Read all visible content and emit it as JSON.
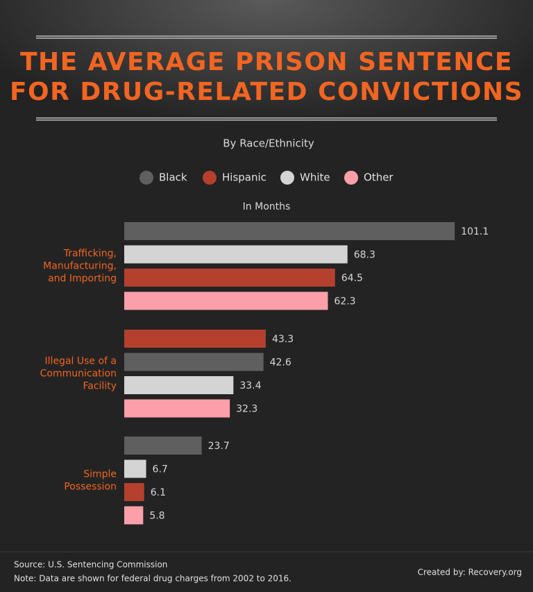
{
  "chart_data": {
    "type": "bar",
    "orientation": "horizontal",
    "title_lines": [
      "THE AVERAGE PRISON SENTENCE",
      "FOR DRUG-RELATED CONVICTIONS"
    ],
    "subtitle": "By Race/Ethnicity",
    "axis_label": "In Months",
    "series": [
      {
        "name": "Black",
        "color": "#5f5f5f"
      },
      {
        "name": "Hispanic",
        "color": "#b5402e"
      },
      {
        "name": "White",
        "color": "#d4d4d4"
      },
      {
        "name": "Other",
        "color": "#fd9fa8"
      }
    ],
    "groups": [
      {
        "label_lines": [
          "Trafficking,",
          "Manufacturing,",
          "and Importing"
        ],
        "bars": [
          {
            "color": "#5f5f5f",
            "value": 101.1
          },
          {
            "color": "#d4d4d4",
            "value": 68.3
          },
          {
            "color": "#b5402e",
            "value": 64.5
          },
          {
            "color": "#fd9fa8",
            "value": 62.3
          }
        ]
      },
      {
        "label_lines": [
          "Illegal Use of a",
          "Communication",
          "Facility"
        ],
        "bars": [
          {
            "color": "#b5402e",
            "value": 43.3
          },
          {
            "color": "#5f5f5f",
            "value": 42.6
          },
          {
            "color": "#d4d4d4",
            "value": 33.4
          },
          {
            "color": "#fd9fa8",
            "value": 32.3
          }
        ]
      },
      {
        "label_lines": [
          "Simple",
          "Possession"
        ],
        "bars": [
          {
            "color": "#5f5f5f",
            "value": 23.7
          },
          {
            "color": "#d4d4d4",
            "value": 6.7
          },
          {
            "color": "#b5402e",
            "value": 6.1
          },
          {
            "color": "#fd9fa8",
            "value": 5.8
          }
        ]
      }
    ],
    "source": "Source: U.S. Sentencing Commission",
    "note": "Note: Data are shown for federal drug charges from 2002 to 2016.",
    "credit": "Created by: Recovery.org"
  }
}
